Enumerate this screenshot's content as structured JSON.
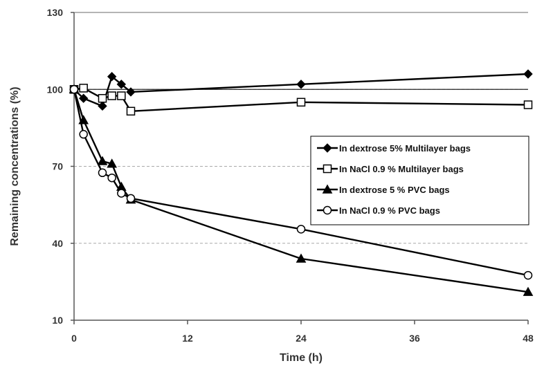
{
  "chart_data": {
    "type": "line",
    "title": "",
    "xlabel": "Time (h)",
    "ylabel": "Remaining concentrations (%)",
    "xlim": [
      0,
      48
    ],
    "ylim": [
      10,
      130
    ],
    "xticks": [
      0,
      12,
      24,
      36,
      48
    ],
    "yticks": [
      10,
      40,
      70,
      100,
      130
    ],
    "grid": "dashed gray at y=40 and y=70",
    "reference_line": 100,
    "legend_position": "right",
    "series": [
      {
        "name": "In dextrose 5% Multilayer bags",
        "marker": "filled-diamond",
        "x": [
          0,
          1,
          3,
          4,
          5,
          6,
          24,
          48
        ],
        "y": [
          100,
          96.5,
          93.5,
          105,
          102,
          99,
          102,
          106
        ]
      },
      {
        "name": "In NaCl 0.9 % Multilayer bags",
        "marker": "open-square",
        "x": [
          0,
          1,
          3,
          4,
          5,
          6,
          24,
          48
        ],
        "y": [
          100,
          100.5,
          96.5,
          97.5,
          97.5,
          91.5,
          95,
          94
        ]
      },
      {
        "name": "In dextrose 5 % PVC bags",
        "marker": "filled-triangle",
        "x": [
          0,
          1,
          3,
          4,
          5,
          6,
          24,
          48
        ],
        "y": [
          100,
          88,
          72,
          71,
          62,
          57,
          34,
          21
        ]
      },
      {
        "name": "In NaCl 0.9 % PVC bags",
        "marker": "open-circle",
        "x": [
          0,
          1,
          3,
          4,
          5,
          6,
          24,
          48
        ],
        "y": [
          100,
          82.5,
          67.5,
          65.5,
          59.5,
          57.5,
          45.5,
          27.5
        ]
      }
    ]
  }
}
